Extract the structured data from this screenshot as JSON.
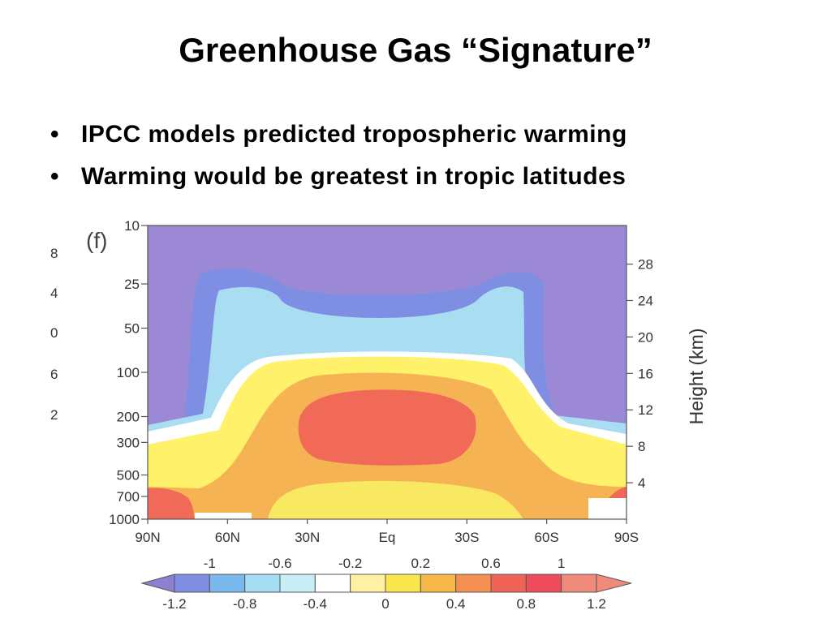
{
  "slide": {
    "title": "Greenhouse Gas “Signature”",
    "bullets": [
      "IPCC models predicted tropospheric warming",
      "Warming would be greatest in tropic latitudes"
    ],
    "left_clipped_labels": [
      "8",
      "4",
      "0",
      "6",
      "2"
    ]
  },
  "chart_data": {
    "type": "heatmap",
    "panel_label": "(f)",
    "x": {
      "label": "",
      "ticks": [
        "90N",
        "60N",
        "30N",
        "Eq",
        "30S",
        "60S",
        "90S"
      ],
      "values": [
        90,
        60,
        30,
        0,
        -30,
        -60,
        -90
      ],
      "range": [
        90,
        -90
      ]
    },
    "y_left": {
      "label": "",
      "scale": "log",
      "ticks": [
        "10",
        "25",
        "50",
        "100",
        "200",
        "300",
        "500",
        "700",
        "1000"
      ],
      "values": [
        10,
        25,
        50,
        100,
        200,
        300,
        500,
        700,
        1000
      ],
      "range": [
        1000,
        10
      ]
    },
    "y_right": {
      "label": "Height (km)",
      "ticks": [
        "28",
        "24",
        "20",
        "16",
        "12",
        "8",
        "4"
      ],
      "values": [
        28,
        24,
        20,
        16,
        12,
        8,
        4
      ]
    },
    "colorbar": {
      "top_labels": [
        "-1",
        "-0.6",
        "-0.2",
        "0.2",
        "0.6",
        "1"
      ],
      "bottom_labels": [
        "-1.2",
        "-0.8",
        "-0.4",
        "0",
        "0.4",
        "0.8",
        "1.2"
      ],
      "boundaries": [
        -1.2,
        -1.0,
        -0.8,
        -0.6,
        -0.4,
        -0.2,
        0,
        0.2,
        0.4,
        0.6,
        0.8,
        1.0,
        1.2
      ],
      "colors": [
        "#8f7fd0",
        "#7e8fe3",
        "#79b9ee",
        "#a3dcf3",
        "#c9eef5",
        "#ffffff",
        "#fff1a1",
        "#f9e64c",
        "#f6b747",
        "#f58f52",
        "#ef6457",
        "#ee4b5b",
        "#f08a7a"
      ]
    },
    "fields": {
      "background": "#9b89d6",
      "band_dark_blue": "#7e8fe3",
      "band_light_blue": "#a8ddf2",
      "band_white": "#ffffff",
      "band_yellow": "#fff26a",
      "band_orange": "#f6b354",
      "band_red": "#f06a57",
      "band_lower_yellow": "#f8e862"
    }
  }
}
